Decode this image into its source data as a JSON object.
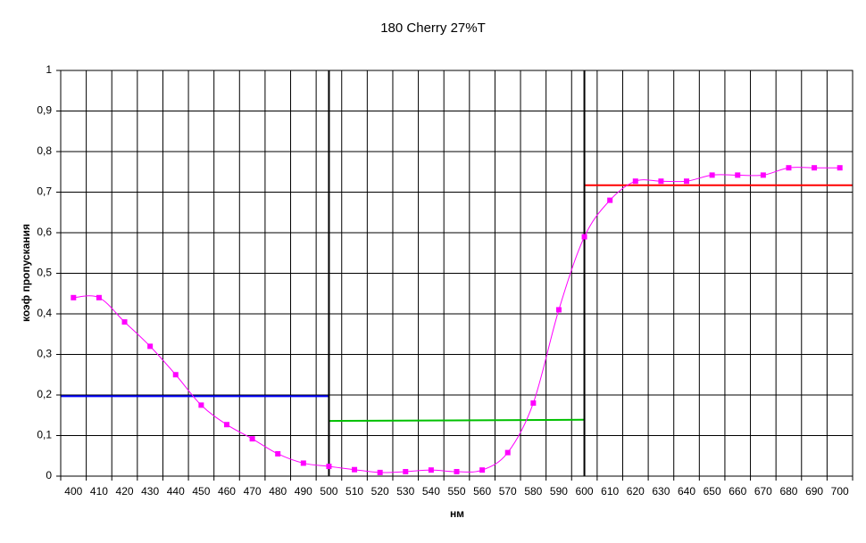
{
  "chart_data": {
    "type": "line",
    "title": "180 Cherry 27%T",
    "x_label": "нм",
    "y_label": "коэф пропускания",
    "categories": [
      400,
      410,
      420,
      430,
      440,
      450,
      460,
      470,
      480,
      490,
      500,
      510,
      520,
      530,
      540,
      550,
      560,
      570,
      580,
      590,
      600,
      610,
      620,
      630,
      640,
      650,
      660,
      670,
      680,
      690,
      700
    ],
    "series": [
      {
        "color": "#ff00ff",
        "values": [
          0.44,
          0.44,
          0.38,
          0.32,
          0.25,
          0.175,
          0.127,
          0.092,
          0.055,
          0.032,
          0.024,
          0.016,
          0.009,
          0.011,
          0.015,
          0.011,
          0.015,
          0.058,
          0.18,
          0.41,
          0.59,
          0.68,
          0.727,
          0.727,
          0.727,
          0.742,
          0.742,
          0.742,
          0.76,
          0.76,
          0.76
        ]
      }
    ],
    "segments": [
      {
        "color": "#0000ff",
        "x": [
          400,
          500
        ],
        "values": [
          0.197,
          0.197
        ]
      },
      {
        "color": "#00c000",
        "x": [
          500,
          600
        ],
        "values": [
          0.136,
          0.139
        ]
      },
      {
        "color": "#ff0000",
        "x": [
          600,
          700
        ],
        "values": [
          0.717,
          0.717
        ]
      }
    ],
    "vlines": [
      500,
      600
    ],
    "ylim": [
      0,
      1
    ],
    "yticks": [
      0,
      {
        "value": 0.1,
        "label": "0,1"
      },
      {
        "value": 0.2,
        "label": "0,2"
      },
      {
        "value": 0.3,
        "label": "0,3"
      },
      {
        "value": 0.4,
        "label": "0,4"
      },
      {
        "value": 0.5,
        "label": "0,5"
      },
      {
        "value": 0.6,
        "label": "0,6"
      },
      {
        "value": 0.7,
        "label": "0,7"
      },
      {
        "value": 0.8,
        "label": "0,8"
      },
      {
        "value": 0.9,
        "label": "0,9"
      },
      1
    ],
    "grid": true
  }
}
